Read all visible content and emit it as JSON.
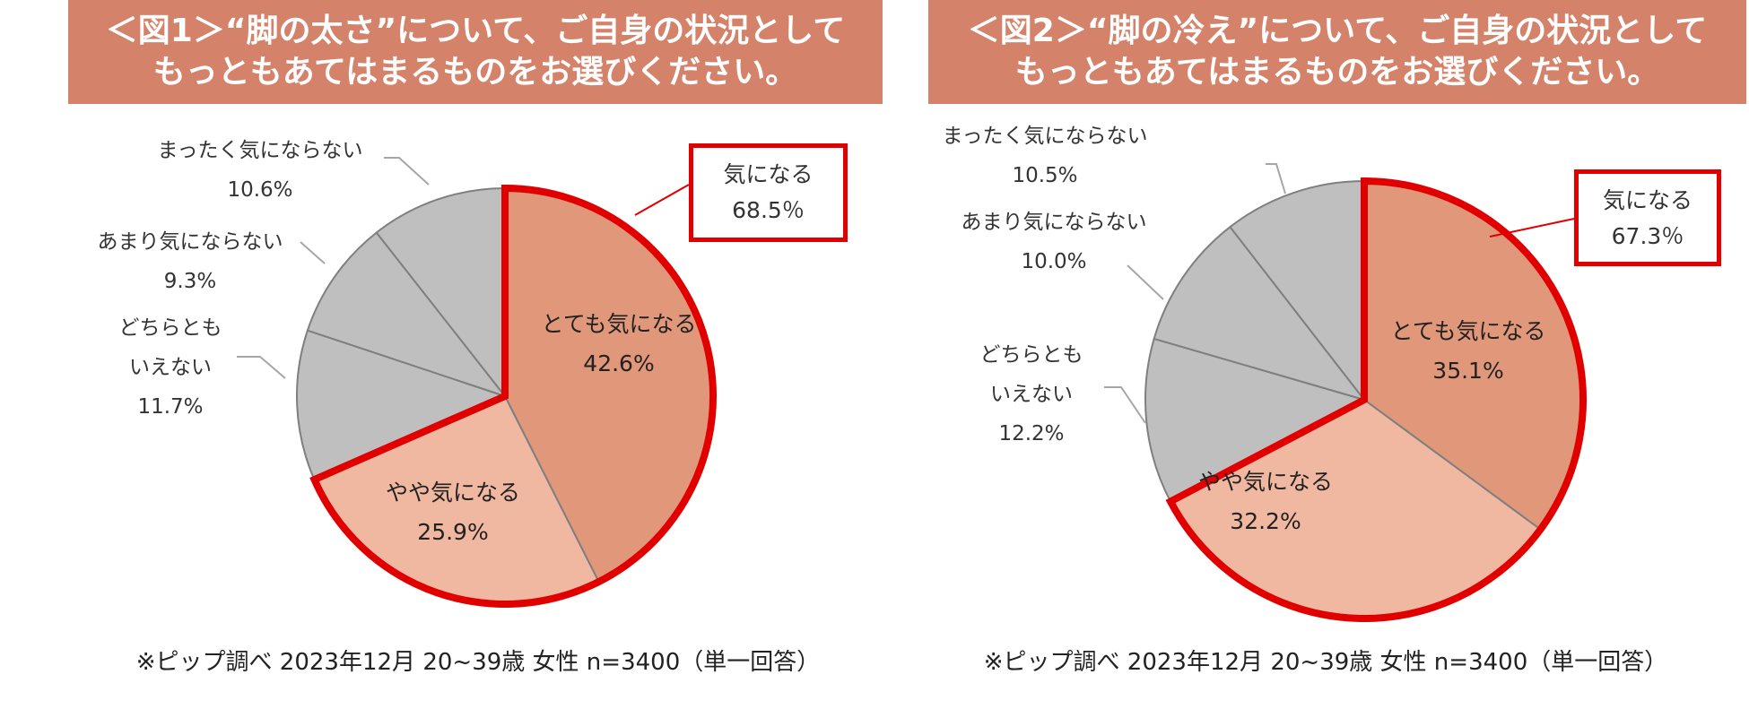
{
  "chart_data": [
    {
      "type": "pie",
      "title_lines": [
        "＜図1＞“脚の太さ”について、ご自身の状況として",
        "もっともあてはまるものをお選びください。"
      ],
      "slices": [
        {
          "label": "とても気になる",
          "value": 42.6,
          "pct": "42.6%",
          "color": "#e1977a"
        },
        {
          "label": "やや気になる",
          "value": 25.9,
          "pct": "25.9%",
          "color": "#f0b8a0"
        },
        {
          "label": "どちらとも\nいえない",
          "value": 11.7,
          "pct": "11.7%",
          "color": "#bfbfbf"
        },
        {
          "label": "あまり気にならない",
          "value": 9.3,
          "pct": "9.3%",
          "color": "#bfbfbf"
        },
        {
          "label": "まったく気にならない",
          "value": 10.6,
          "pct": "10.6%",
          "color": "#bfbfbf"
        }
      ],
      "highlight": {
        "label": "気になる",
        "pct": "68.5％",
        "color": "#e00000"
      },
      "footnote": "※ピップ調べ 2023年12月 20~39歳 女性 n=3400（単一回答）"
    },
    {
      "type": "pie",
      "title_lines": [
        "＜図2＞“脚の冷え”について、ご自身の状況として",
        "もっともあてはまるものをお選びください。"
      ],
      "slices": [
        {
          "label": "とても気になる",
          "value": 35.1,
          "pct": "35.1%",
          "color": "#e1977a"
        },
        {
          "label": "やや気になる",
          "value": 32.2,
          "pct": "32.2%",
          "color": "#f0b8a0"
        },
        {
          "label": "どちらとも\nいえない",
          "value": 12.2,
          "pct": "12.2%",
          "color": "#bfbfbf"
        },
        {
          "label": "あまり気にならない",
          "value": 10.0,
          "pct": "10.0%",
          "color": "#bfbfbf"
        },
        {
          "label": "まったく気にならない",
          "value": 10.5,
          "pct": "10.5%",
          "color": "#bfbfbf"
        }
      ],
      "highlight": {
        "label": "気になる",
        "pct": "67.3％",
        "color": "#e00000"
      },
      "footnote": "※ピップ調べ 2023年12月 20~39歳 女性 n=3400（単一回答）"
    }
  ]
}
